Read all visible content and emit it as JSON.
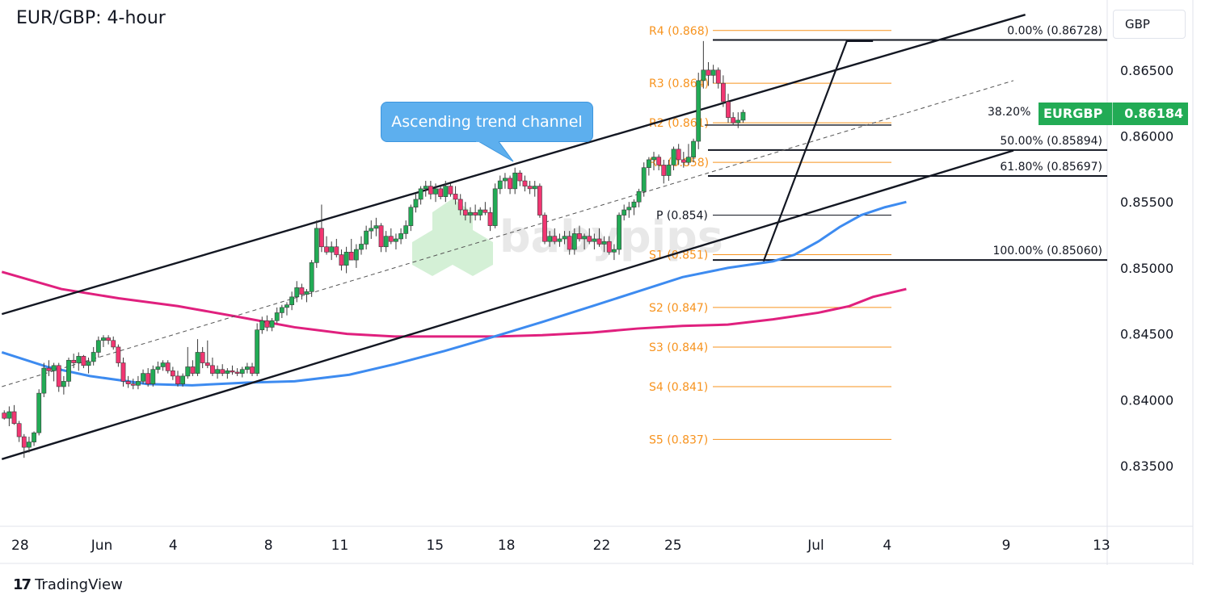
{
  "title": "EUR/GBP: 4-hour",
  "currency": "GBP",
  "symbol": "EURGBP",
  "last_price": "0.86184",
  "brand": "TradingView",
  "watermark": "babypips",
  "colors": {
    "up": "#22ab55",
    "down": "#f23672",
    "ma_fast": "#3d8bf0",
    "ma_slow": "#e0207e",
    "pivot": "#f7931e",
    "callout": "#5dafee"
  },
  "annotations": {
    "callout": "Ascending trend channel"
  },
  "chart_data": {
    "type": "candlestick",
    "title": "EUR/GBP: 4-hour",
    "y_axis": {
      "range": [
        0.8305,
        0.8705
      ],
      "ticks": [
        "0.83500",
        "0.84000",
        "0.84500",
        "0.85000",
        "0.85500",
        "0.86000",
        "0.86500"
      ],
      "position": "right"
    },
    "x_axis": {
      "labels": [
        "28",
        "Jun",
        "4",
        "8",
        "11",
        "15",
        "18",
        "22",
        "25",
        "Jul",
        "4",
        "9",
        "13"
      ],
      "day_index": [
        -4,
        0,
        3,
        7,
        10,
        14,
        17,
        21,
        24,
        30,
        33,
        38,
        42
      ]
    },
    "pivots": [
      {
        "label": "R4 (0.868)",
        "value": 0.868
      },
      {
        "label": "R3 (0.864)",
        "value": 0.864
      },
      {
        "label": "R2 (0.861)",
        "value": 0.861
      },
      {
        "label": "R1 (0.858)",
        "value": 0.858
      },
      {
        "label": "P (0.854)",
        "value": 0.854
      },
      {
        "label": "S1 (0.851)",
        "value": 0.851
      },
      {
        "label": "S2 (0.847)",
        "value": 0.847
      },
      {
        "label": "S3 (0.844)",
        "value": 0.844
      },
      {
        "label": "S4 (0.841)",
        "value": 0.841
      },
      {
        "label": "S5 (0.837)",
        "value": 0.837
      }
    ],
    "fibonacci": [
      {
        "label": "0.00% (0.86728)",
        "value": 0.86728
      },
      {
        "label": "38.20%",
        "value": 0.86083
      },
      {
        "label": "50.00% (0.85894)",
        "value": 0.85894
      },
      {
        "label": "61.80% (0.85697)",
        "value": 0.85697
      },
      {
        "label": "100.00% (0.85060)",
        "value": 0.8506
      }
    ],
    "channel": {
      "upper": [
        [
          -4.2,
          0.8465
        ],
        [
          38.8,
          0.8692
        ]
      ],
      "middle": [
        [
          -4.2,
          0.841
        ],
        [
          38.3,
          0.8642
        ]
      ],
      "lower": [
        [
          -4.2,
          0.8355
        ],
        [
          38.3,
          0.8589
        ]
      ]
    },
    "zigzag": [
      [
        27.8,
        0.8505
      ],
      [
        31.3,
        0.8672
      ],
      [
        32.4,
        0.8672
      ]
    ],
    "ma_fast": [
      [
        -4.2,
        0.8436
      ],
      [
        -2.3,
        0.8425
      ],
      [
        -0.5,
        0.8418
      ],
      [
        1.9,
        0.8412
      ],
      [
        3.8,
        0.8411
      ],
      [
        6.1,
        0.8413
      ],
      [
        8.1,
        0.8414
      ],
      [
        10.4,
        0.8419
      ],
      [
        12.3,
        0.8427
      ],
      [
        14.4,
        0.8437
      ],
      [
        16.5,
        0.8448
      ],
      [
        18.5,
        0.8459
      ],
      [
        20.6,
        0.8471
      ],
      [
        22.5,
        0.8482
      ],
      [
        24.4,
        0.8493
      ],
      [
        26.3,
        0.85
      ],
      [
        28.2,
        0.8505
      ],
      [
        29.1,
        0.851
      ],
      [
        30.1,
        0.852
      ],
      [
        31.0,
        0.8531
      ],
      [
        31.9,
        0.854
      ],
      [
        32.9,
        0.8546
      ],
      [
        33.8,
        0.855
      ]
    ],
    "ma_slow": [
      [
        -4.2,
        0.8497
      ],
      [
        -1.7,
        0.8484
      ],
      [
        0.7,
        0.8477
      ],
      [
        3.2,
        0.8471
      ],
      [
        5.7,
        0.8463
      ],
      [
        8.1,
        0.8455
      ],
      [
        10.3,
        0.845
      ],
      [
        12.3,
        0.8448
      ],
      [
        14.4,
        0.8448
      ],
      [
        16.5,
        0.8448
      ],
      [
        18.5,
        0.8449
      ],
      [
        20.6,
        0.8451
      ],
      [
        22.5,
        0.8454
      ],
      [
        24.4,
        0.8456
      ],
      [
        26.3,
        0.8457
      ],
      [
        28.2,
        0.8461
      ],
      [
        30.1,
        0.8466
      ],
      [
        31.4,
        0.8471
      ],
      [
        32.4,
        0.8478
      ],
      [
        33.8,
        0.8484
      ]
    ],
    "candles": [
      [
        0.839,
        0.8392,
        0.8385,
        0.8386
      ],
      [
        0.8386,
        0.8395,
        0.838,
        0.8391
      ],
      [
        0.8391,
        0.8396,
        0.8381,
        0.8382
      ],
      [
        0.8382,
        0.8384,
        0.8368,
        0.8372
      ],
      [
        0.8372,
        0.8374,
        0.8356,
        0.8364
      ],
      [
        0.8364,
        0.8372,
        0.836,
        0.8368
      ],
      [
        0.8368,
        0.8376,
        0.8365,
        0.8375
      ],
      [
        0.8375,
        0.8408,
        0.8373,
        0.8405
      ],
      [
        0.8405,
        0.8428,
        0.8402,
        0.8424
      ],
      [
        0.8424,
        0.843,
        0.8418,
        0.8422
      ],
      [
        0.8422,
        0.8428,
        0.8414,
        0.8426
      ],
      [
        0.8426,
        0.8428,
        0.8406,
        0.841
      ],
      [
        0.841,
        0.8418,
        0.8404,
        0.8414
      ],
      [
        0.8414,
        0.8432,
        0.841,
        0.843
      ],
      [
        0.843,
        0.8435,
        0.8424,
        0.8428
      ],
      [
        0.8428,
        0.8436,
        0.8422,
        0.8433
      ],
      [
        0.8433,
        0.8434,
        0.8424,
        0.8426
      ],
      [
        0.8426,
        0.8432,
        0.842,
        0.8429
      ],
      [
        0.8429,
        0.844,
        0.8426,
        0.8436
      ],
      [
        0.8436,
        0.8448,
        0.8432,
        0.8445
      ],
      [
        0.8445,
        0.8449,
        0.844,
        0.8447
      ],
      [
        0.8447,
        0.8449,
        0.8442,
        0.8445
      ],
      [
        0.8445,
        0.8448,
        0.8438,
        0.844
      ],
      [
        0.844,
        0.8442,
        0.8425,
        0.8428
      ],
      [
        0.8428,
        0.8432,
        0.841,
        0.8414
      ],
      [
        0.8414,
        0.8418,
        0.8409,
        0.8412
      ],
      [
        0.8412,
        0.8416,
        0.8408,
        0.8411
      ],
      [
        0.8411,
        0.8418,
        0.8408,
        0.8414
      ],
      [
        0.8414,
        0.8423,
        0.8412,
        0.842
      ],
      [
        0.842,
        0.8424,
        0.841,
        0.8412
      ],
      [
        0.8412,
        0.8426,
        0.841,
        0.8423
      ],
      [
        0.8423,
        0.8429,
        0.842,
        0.8425
      ],
      [
        0.8425,
        0.843,
        0.8422,
        0.8428
      ],
      [
        0.8428,
        0.843,
        0.842,
        0.8422
      ],
      [
        0.8422,
        0.8425,
        0.8415,
        0.8418
      ],
      [
        0.8418,
        0.8422,
        0.841,
        0.8412
      ],
      [
        0.8412,
        0.842,
        0.841,
        0.8418
      ],
      [
        0.8418,
        0.844,
        0.8416,
        0.8425
      ],
      [
        0.8425,
        0.843,
        0.8418,
        0.842
      ],
      [
        0.842,
        0.8446,
        0.8418,
        0.8436
      ],
      [
        0.8436,
        0.844,
        0.8424,
        0.8428
      ],
      [
        0.8428,
        0.8445,
        0.8424,
        0.8426
      ],
      [
        0.8426,
        0.8432,
        0.8418,
        0.842
      ],
      [
        0.842,
        0.8426,
        0.8416,
        0.8423
      ],
      [
        0.8423,
        0.8427,
        0.8418,
        0.842
      ],
      [
        0.842,
        0.8424,
        0.8416,
        0.8422
      ],
      [
        0.8422,
        0.8426,
        0.8419,
        0.8421
      ],
      [
        0.8421,
        0.8424,
        0.8418,
        0.842
      ],
      [
        0.842,
        0.8425,
        0.8417,
        0.8423
      ],
      [
        0.8423,
        0.8428,
        0.842,
        0.8425
      ],
      [
        0.8425,
        0.8428,
        0.8418,
        0.842
      ],
      [
        0.842,
        0.8458,
        0.8418,
        0.8453
      ],
      [
        0.8453,
        0.8463,
        0.845,
        0.846
      ],
      [
        0.846,
        0.8464,
        0.8452,
        0.8455
      ],
      [
        0.8455,
        0.8462,
        0.8452,
        0.846
      ],
      [
        0.846,
        0.847,
        0.8458,
        0.8466
      ],
      [
        0.8466,
        0.8472,
        0.8462,
        0.847
      ],
      [
        0.847,
        0.8474,
        0.8464,
        0.8472
      ],
      [
        0.8472,
        0.8482,
        0.8468,
        0.8478
      ],
      [
        0.8478,
        0.849,
        0.8474,
        0.8485
      ],
      [
        0.8485,
        0.8488,
        0.8476,
        0.848
      ],
      [
        0.848,
        0.8484,
        0.8474,
        0.8482
      ],
      [
        0.8482,
        0.8506,
        0.8478,
        0.8504
      ],
      [
        0.8504,
        0.8536,
        0.85,
        0.853
      ],
      [
        0.853,
        0.8548,
        0.8512,
        0.8516
      ],
      [
        0.8516,
        0.8524,
        0.851,
        0.8512
      ],
      [
        0.8512,
        0.852,
        0.8506,
        0.8516
      ],
      [
        0.8516,
        0.8522,
        0.8508,
        0.851
      ],
      [
        0.851,
        0.8514,
        0.8498,
        0.8502
      ],
      [
        0.8502,
        0.8516,
        0.8496,
        0.8512
      ],
      [
        0.8512,
        0.8522,
        0.8508,
        0.8506
      ],
      [
        0.8506,
        0.8518,
        0.85,
        0.8514
      ],
      [
        0.8514,
        0.8524,
        0.851,
        0.8518
      ],
      [
        0.8518,
        0.8532,
        0.8514,
        0.8528
      ],
      [
        0.8528,
        0.8536,
        0.8522,
        0.853
      ],
      [
        0.853,
        0.8538,
        0.8524,
        0.8532
      ],
      [
        0.8532,
        0.8534,
        0.8512,
        0.8516
      ],
      [
        0.8516,
        0.8528,
        0.8512,
        0.8524
      ],
      [
        0.8524,
        0.853,
        0.8518,
        0.852
      ],
      [
        0.852,
        0.8526,
        0.8514,
        0.8522
      ],
      [
        0.8522,
        0.853,
        0.8518,
        0.8526
      ],
      [
        0.8526,
        0.8536,
        0.8522,
        0.8532
      ],
      [
        0.8532,
        0.8548,
        0.8528,
        0.8546
      ],
      [
        0.8546,
        0.8556,
        0.8542,
        0.8552
      ],
      [
        0.8552,
        0.8562,
        0.8548,
        0.856
      ],
      [
        0.856,
        0.8566,
        0.8554,
        0.8562
      ],
      [
        0.8562,
        0.8566,
        0.8552,
        0.8556
      ],
      [
        0.8556,
        0.8564,
        0.855,
        0.856
      ],
      [
        0.856,
        0.8562,
        0.8552,
        0.8554
      ],
      [
        0.8554,
        0.8566,
        0.855,
        0.8562
      ],
      [
        0.8562,
        0.8564,
        0.8554,
        0.8556
      ],
      [
        0.8556,
        0.8562,
        0.8548,
        0.8552
      ],
      [
        0.8552,
        0.8556,
        0.854,
        0.8544
      ],
      [
        0.8544,
        0.855,
        0.8536,
        0.854
      ],
      [
        0.854,
        0.8546,
        0.8534,
        0.8542
      ],
      [
        0.8542,
        0.8548,
        0.8536,
        0.854
      ],
      [
        0.854,
        0.8546,
        0.8536,
        0.8544
      ],
      [
        0.8544,
        0.855,
        0.854,
        0.8542
      ],
      [
        0.8542,
        0.8546,
        0.8528,
        0.8532
      ],
      [
        0.8532,
        0.8564,
        0.853,
        0.856
      ],
      [
        0.856,
        0.857,
        0.8556,
        0.8566
      ],
      [
        0.8566,
        0.8572,
        0.856,
        0.8568
      ],
      [
        0.8568,
        0.857,
        0.8556,
        0.856
      ],
      [
        0.856,
        0.8576,
        0.8556,
        0.8572
      ],
      [
        0.8572,
        0.8574,
        0.8562,
        0.8566
      ],
      [
        0.8566,
        0.857,
        0.8558,
        0.8562
      ],
      [
        0.8562,
        0.8566,
        0.8556,
        0.856
      ],
      [
        0.856,
        0.8566,
        0.8554,
        0.8562
      ],
      [
        0.8562,
        0.8564,
        0.8538,
        0.854
      ],
      [
        0.854,
        0.8542,
        0.8518,
        0.852
      ],
      [
        0.852,
        0.8528,
        0.8516,
        0.8524
      ],
      [
        0.8524,
        0.853,
        0.8518,
        0.852
      ],
      [
        0.852,
        0.8526,
        0.8516,
        0.8522
      ],
      [
        0.8522,
        0.8528,
        0.8518,
        0.8524
      ],
      [
        0.8524,
        0.8528,
        0.851,
        0.8514
      ],
      [
        0.8514,
        0.853,
        0.851,
        0.8526
      ],
      [
        0.8526,
        0.8532,
        0.852,
        0.8522
      ],
      [
        0.8522,
        0.8526,
        0.8514,
        0.8524
      ],
      [
        0.8524,
        0.853,
        0.8518,
        0.852
      ],
      [
        0.852,
        0.8526,
        0.8514,
        0.8522
      ],
      [
        0.8522,
        0.853,
        0.8516,
        0.8518
      ],
      [
        0.8518,
        0.8524,
        0.8512,
        0.852
      ],
      [
        0.852,
        0.8524,
        0.851,
        0.8512
      ],
      [
        0.8512,
        0.8518,
        0.8506,
        0.8514
      ],
      [
        0.8514,
        0.8542,
        0.851,
        0.854
      ],
      [
        0.854,
        0.8548,
        0.8536,
        0.8544
      ],
      [
        0.8544,
        0.855,
        0.8538,
        0.8546
      ],
      [
        0.8546,
        0.8552,
        0.854,
        0.855
      ],
      [
        0.855,
        0.856,
        0.8546,
        0.8558
      ],
      [
        0.8558,
        0.858,
        0.8554,
        0.8576
      ],
      [
        0.8576,
        0.8584,
        0.857,
        0.8582
      ],
      [
        0.8582,
        0.8588,
        0.8574,
        0.8584
      ],
      [
        0.8584,
        0.8586,
        0.8574,
        0.8578
      ],
      [
        0.8578,
        0.8582,
        0.8564,
        0.857
      ],
      [
        0.857,
        0.8582,
        0.8566,
        0.8578
      ],
      [
        0.8578,
        0.8592,
        0.8574,
        0.859
      ],
      [
        0.859,
        0.8594,
        0.8578,
        0.8582
      ],
      [
        0.8582,
        0.8588,
        0.8576,
        0.858
      ],
      [
        0.858,
        0.8594,
        0.8578,
        0.8584
      ],
      [
        0.8584,
        0.8598,
        0.858,
        0.8596
      ],
      [
        0.8596,
        0.8648,
        0.859,
        0.8642
      ],
      [
        0.8642,
        0.8672,
        0.8636,
        0.865
      ],
      [
        0.865,
        0.8656,
        0.8638,
        0.8646
      ],
      [
        0.8646,
        0.8654,
        0.864,
        0.865
      ],
      [
        0.865,
        0.8652,
        0.8636,
        0.864
      ],
      [
        0.864,
        0.8646,
        0.8622,
        0.8626
      ],
      [
        0.8626,
        0.8632,
        0.861,
        0.8614
      ],
      [
        0.8614,
        0.8618,
        0.8608,
        0.861
      ],
      [
        0.861,
        0.8618,
        0.8606,
        0.8612
      ],
      [
        0.8612,
        0.862,
        0.861,
        0.8618
      ]
    ]
  }
}
